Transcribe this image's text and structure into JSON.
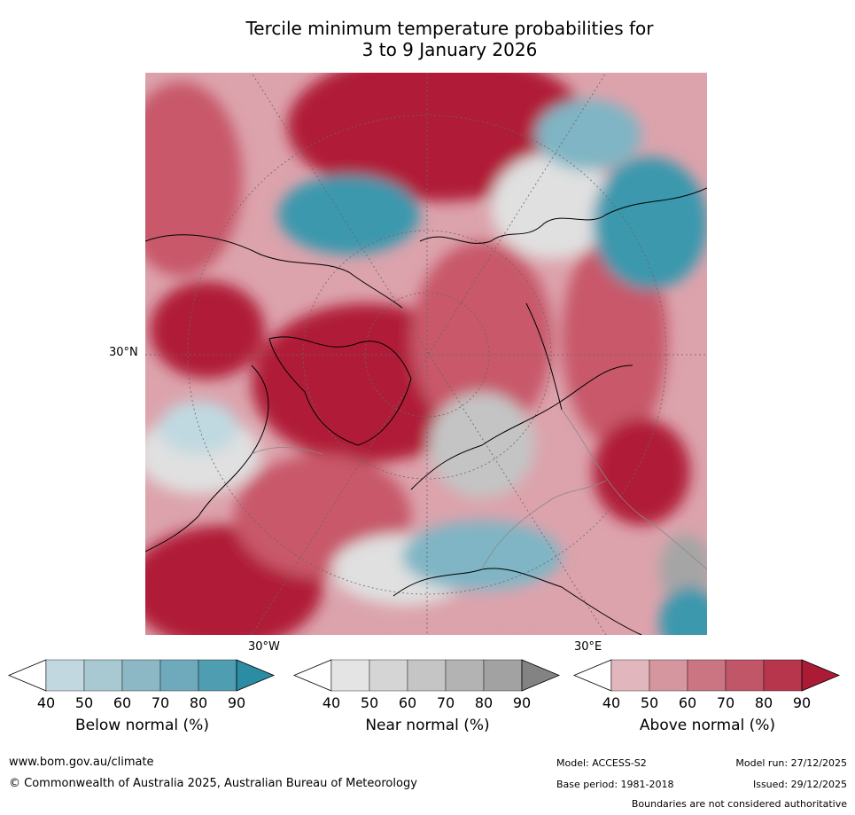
{
  "title": {
    "line1": "Tercile minimum temperature probabilities for",
    "line2": "3 to 9 January 2026"
  },
  "map": {
    "axis_labels": {
      "lat_30n": "30°N",
      "lon_30w": "30°W",
      "lon_30e": "30°E"
    }
  },
  "colorbars": [
    {
      "id": "below",
      "title": "Below normal (%)",
      "ticks": [
        "40",
        "50",
        "60",
        "70",
        "80",
        "90"
      ],
      "colors": [
        "#c2d8e0",
        "#a8c8d2",
        "#8cb8c6",
        "#6eaabb",
        "#4f9db0"
      ],
      "over_color": "#2b8da3"
    },
    {
      "id": "near",
      "title": "Near normal (%)",
      "ticks": [
        "40",
        "50",
        "60",
        "70",
        "80",
        "90"
      ],
      "colors": [
        "#e4e4e4",
        "#d5d5d5",
        "#c5c5c5",
        "#b3b3b3",
        "#a2a2a2"
      ],
      "over_color": "#838383"
    },
    {
      "id": "above",
      "title": "Above normal (%)",
      "ticks": [
        "40",
        "50",
        "60",
        "70",
        "80",
        "90"
      ],
      "colors": [
        "#e2b6bd",
        "#d6969f",
        "#ca7581",
        "#c05667",
        "#b8364b"
      ],
      "over_color": "#ab1b36"
    }
  ],
  "footer": {
    "website": "www.bom.gov.au/climate",
    "copyright": "© Commonwealth of Australia 2025, Australian Bureau of Meteorology",
    "model": "Model: ACCESS-S2",
    "base_period": "Base period: 1981-2018",
    "model_run": "Model run: 27/12/2025",
    "issued": "Issued: 29/12/2025",
    "disclaimer": "Boundaries are not considered authoritative"
  },
  "colors": {
    "above_dark": "#b01c38",
    "above_mid": "#c8586a",
    "above_light": "#dca3ac",
    "below_dark": "#3a98ad",
    "below_mid": "#7fb5c4",
    "below_light": "#c0d9e1",
    "near_light": "#e0e0e0",
    "near_mid": "#c4c4c4",
    "near_dark": "#a5a5a5",
    "coast": "#000000",
    "border": "#888888",
    "grid": "#666666"
  }
}
